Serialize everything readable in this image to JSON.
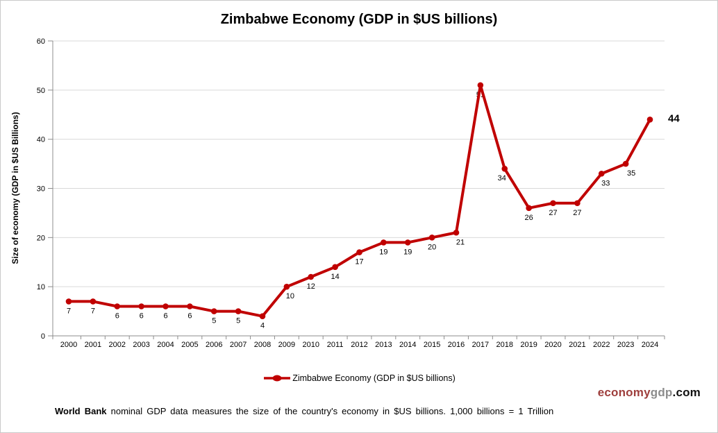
{
  "title": "Zimbabwe Economy (GDP in $US billions)",
  "chart_data": {
    "type": "line",
    "title": "Zimbabwe Economy (GDP in $US billions)",
    "categories": [
      "2000",
      "2001",
      "2002",
      "2003",
      "2004",
      "2005",
      "2006",
      "2007",
      "2008",
      "2009",
      "2010",
      "2011",
      "2012",
      "2013",
      "2014",
      "2015",
      "2016",
      "2017",
      "2018",
      "2019",
      "2020",
      "2021",
      "2022",
      "2023",
      "2024"
    ],
    "series": [
      {
        "name": "Zimbabwe Economy (GDP in $US billions)",
        "color": "#C00000",
        "values": [
          7,
          7,
          6,
          6,
          6,
          6,
          5,
          5,
          4,
          10,
          12,
          14,
          17,
          19,
          19,
          20,
          21,
          51,
          34,
          26,
          27,
          27,
          33,
          35,
          44
        ]
      }
    ],
    "point_labels": [
      "7",
      "7",
      "6",
      "6",
      "6",
      "6",
      "5",
      "5",
      "4",
      "10",
      "12",
      "14",
      "17",
      "19",
      "19",
      "20",
      "21",
      "51",
      "34",
      "26",
      "27",
      "27",
      "33",
      "35",
      "44"
    ],
    "xlabel": "",
    "ylabel": "Size of economy (GDP in $US Billions)",
    "ylim": [
      0,
      60
    ],
    "y_ticks": [
      0,
      10,
      20,
      30,
      40,
      50,
      60
    ],
    "grid": "horizontal",
    "legend_position": "bottom",
    "legend": "Zimbabwe Economy (GDP in $US billions)"
  },
  "footer": {
    "bold": "World Bank",
    "rest": " nominal GDP data  measures the size of the country's economy in $US billions. 1,000 billions = 1 Trillion"
  },
  "brand": {
    "part1": "economy",
    "part2": "gdp",
    "part3": ".com"
  },
  "colors": {
    "line": "#C00000",
    "grid": "#D9D9D9",
    "axis": "#8C8C8C",
    "text": "#000000"
  }
}
